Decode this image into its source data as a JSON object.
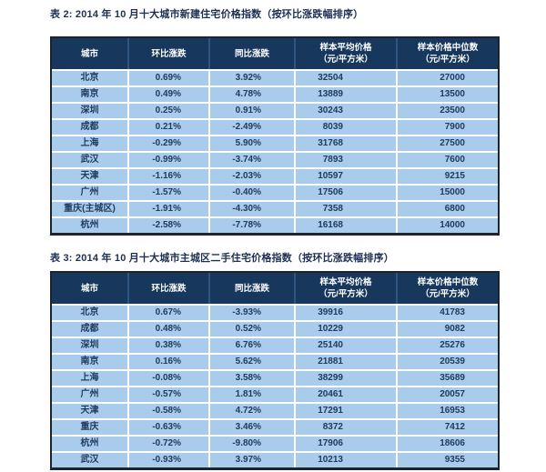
{
  "colors": {
    "header_bg": "#17375d",
    "header_text": "#ffffff",
    "row_bg": "#a9ccec",
    "body_text": "#203a60",
    "row_divider": "#ffffff",
    "header_divider": "#2f5680",
    "outer_border": "#1c2430",
    "title_text": "#1e2f54",
    "page_bg": "#ffffff"
  },
  "tables": [
    {
      "title": "表 2: 2014 年 10 月十大城市新建住宅价格指数（按环比涨跌幅排序）",
      "columns": [
        {
          "label": "城市",
          "sub": ""
        },
        {
          "label": "环比涨跌",
          "sub": ""
        },
        {
          "label": "同比涨跌",
          "sub": ""
        },
        {
          "label": "样本平均价格",
          "sub": "（元/平方米）"
        },
        {
          "label": "样本价格中位数",
          "sub": "（元/平方米）"
        }
      ],
      "rows": [
        [
          "北京",
          "0.69%",
          "3.92%",
          "32504",
          "27000"
        ],
        [
          "南京",
          "0.49%",
          "4.78%",
          "13889",
          "13500"
        ],
        [
          "深圳",
          "0.25%",
          "0.91%",
          "30243",
          "23500"
        ],
        [
          "成都",
          "0.21%",
          "-2.49%",
          "8039",
          "7900"
        ],
        [
          "上海",
          "-0.29%",
          "5.90%",
          "31768",
          "27500"
        ],
        [
          "武汉",
          "-0.99%",
          "-3.74%",
          "7893",
          "7600"
        ],
        [
          "天津",
          "-1.16%",
          "-2.03%",
          "10597",
          "9215"
        ],
        [
          "广州",
          "-1.57%",
          "-0.40%",
          "17506",
          "15000"
        ],
        [
          "重庆(主城区)",
          "-1.91%",
          "-4.30%",
          "7358",
          "6800"
        ],
        [
          "杭州",
          "-2.58%",
          "-7.78%",
          "16168",
          "14000"
        ]
      ]
    },
    {
      "title": "表 3: 2014 年 10 月十大城市主城区二手住宅价格指数（按环比涨跌幅排序）",
      "columns": [
        {
          "label": "城市",
          "sub": ""
        },
        {
          "label": "环比涨跌",
          "sub": ""
        },
        {
          "label": "同比涨跌",
          "sub": ""
        },
        {
          "label": "样本平均价格",
          "sub": "（元/平方米）"
        },
        {
          "label": "样本价格中位数",
          "sub": "（元/平方米）"
        }
      ],
      "rows": [
        [
          "北京",
          "0.67%",
          "-3.93%",
          "39916",
          "41783"
        ],
        [
          "成都",
          "0.48%",
          "0.52%",
          "10229",
          "9082"
        ],
        [
          "深圳",
          "0.38%",
          "6.76%",
          "25140",
          "25276"
        ],
        [
          "南京",
          "0.16%",
          "5.62%",
          "21881",
          "20539"
        ],
        [
          "上海",
          "-0.08%",
          "3.58%",
          "38299",
          "35689"
        ],
        [
          "广州",
          "-0.57%",
          "1.81%",
          "20461",
          "20057"
        ],
        [
          "天津",
          "-0.58%",
          "4.72%",
          "17291",
          "16953"
        ],
        [
          "重庆",
          "-0.63%",
          "3.46%",
          "8372",
          "7412"
        ],
        [
          "杭州",
          "-0.72%",
          "-9.80%",
          "17906",
          "18606"
        ],
        [
          "武汉",
          "-0.93%",
          "3.97%",
          "10213",
          "9355"
        ]
      ]
    }
  ]
}
